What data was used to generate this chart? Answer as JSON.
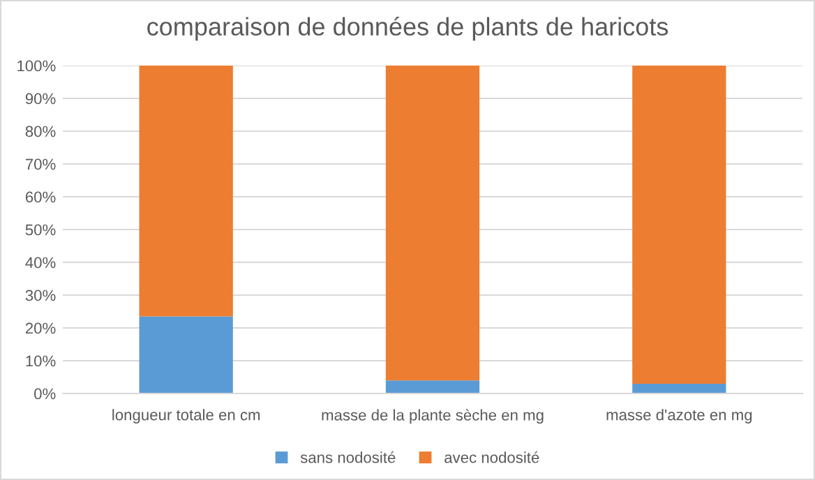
{
  "chart_data": {
    "type": "bar",
    "title": "comparaison de données de plants de haricots",
    "categories": [
      "longueur totale en cm",
      "masse de la plante sèche en mg",
      "masse d'azote en mg"
    ],
    "stacked": true,
    "series": [
      {
        "name": "sans nodosité",
        "color": "#5b9bd5",
        "values": [
          23.5,
          4,
          3
        ]
      },
      {
        "name": "avec nodosité",
        "color": "#ed7d31",
        "values": [
          76.5,
          96,
          97
        ]
      }
    ],
    "ylim": [
      0,
      100
    ],
    "yticks": [
      {
        "value": 0,
        "label": "0%"
      },
      {
        "value": 10,
        "label": "10%"
      },
      {
        "value": 20,
        "label": "20%"
      },
      {
        "value": 30,
        "label": "30%"
      },
      {
        "value": 40,
        "label": "40%"
      },
      {
        "value": 50,
        "label": "50%"
      },
      {
        "value": 60,
        "label": "60%"
      },
      {
        "value": 70,
        "label": "70%"
      },
      {
        "value": 80,
        "label": "80%"
      },
      {
        "value": 90,
        "label": "90%"
      },
      {
        "value": 100,
        "label": "100%"
      }
    ],
    "grid": "y",
    "legend": "bottom"
  }
}
